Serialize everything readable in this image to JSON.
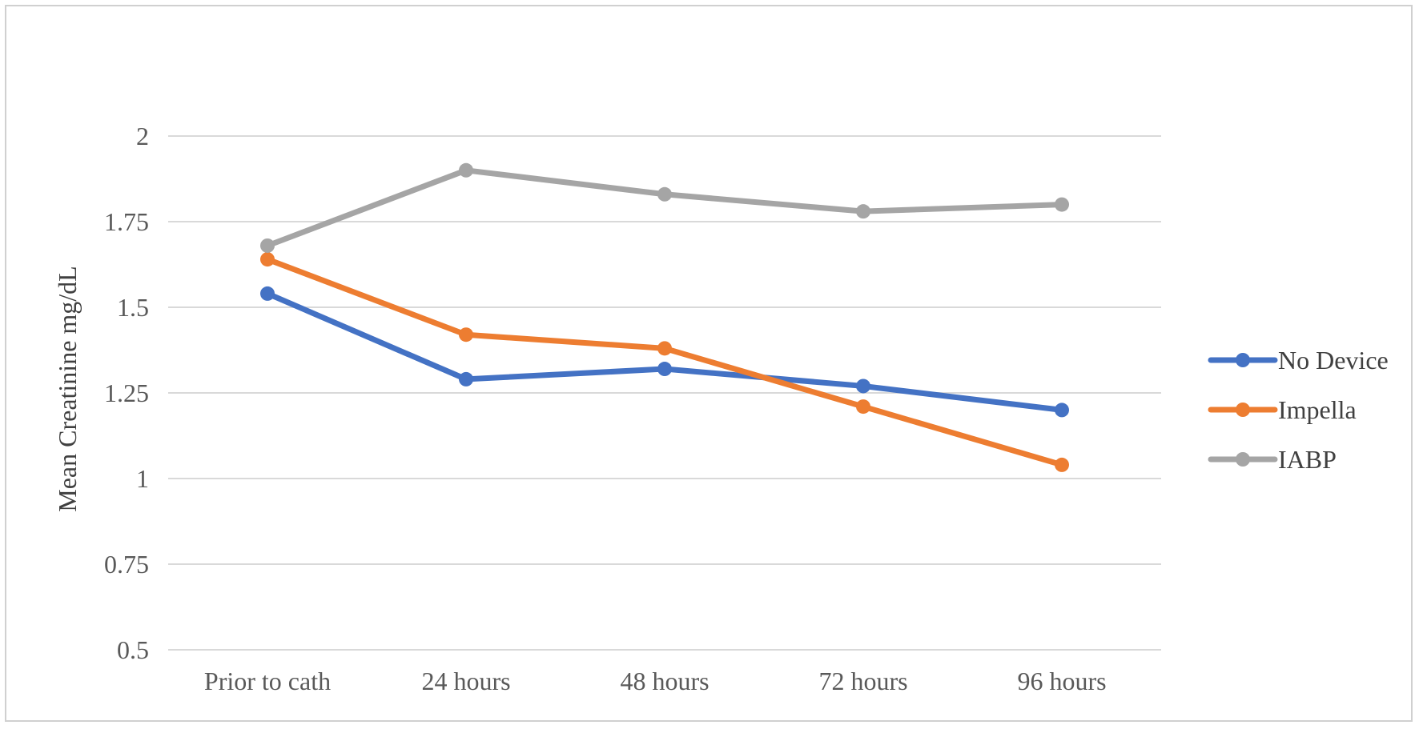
{
  "chart_data": {
    "type": "line",
    "title": "",
    "xlabel": "",
    "ylabel": "Mean Creatinine mg/dL",
    "categories": [
      "Prior to cath",
      "24 hours",
      "48 hours",
      "72 hours",
      "96 hours"
    ],
    "y_ticks": [
      "0.5",
      "0.75",
      "1",
      "1.25",
      "1.5",
      "1.75",
      "2"
    ],
    "ylim": [
      0.5,
      2
    ],
    "grid": "horizontal",
    "legend_position": "right",
    "series": [
      {
        "name": "No Device",
        "color": "#4472c4",
        "values": [
          1.54,
          1.29,
          1.32,
          1.27,
          1.2
        ]
      },
      {
        "name": "Impella",
        "color": "#ed7d31",
        "values": [
          1.64,
          1.42,
          1.38,
          1.21,
          1.04
        ]
      },
      {
        "name": "IABP",
        "color": "#a5a5a5",
        "values": [
          1.68,
          1.9,
          1.83,
          1.78,
          1.8
        ]
      }
    ]
  }
}
